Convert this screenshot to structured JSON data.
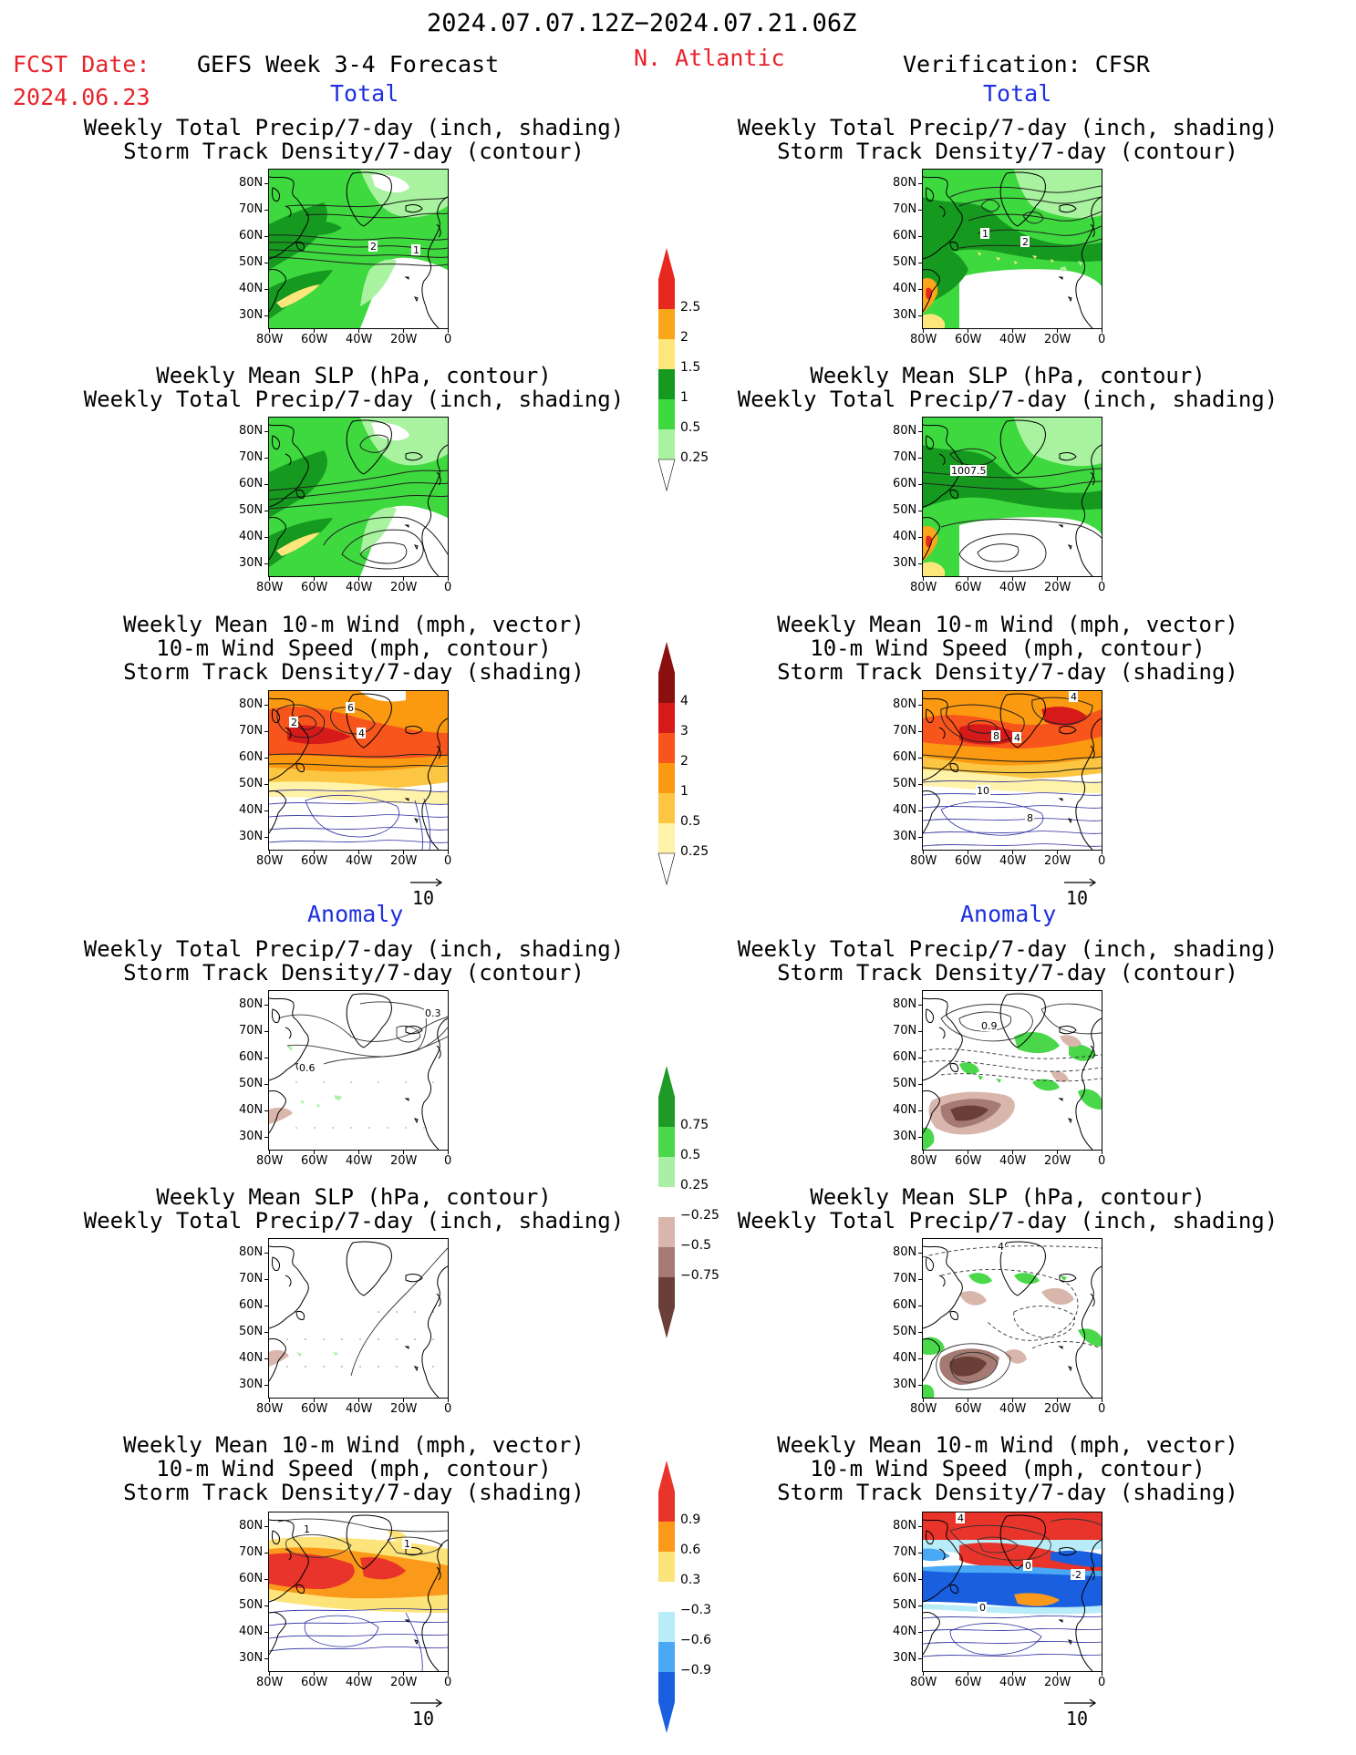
{
  "header": {
    "date_range": "2024.07.07.12Z−2024.07.21.06Z",
    "fcst_label": "FCST Date:",
    "fcst_date": "2024.06.23",
    "forecast_title": "GEFS Week 3-4 Forecast",
    "region": "N. Atlantic",
    "verification": "Verification: CFSR"
  },
  "sections": {
    "total": "Total",
    "anomaly": "Anomaly"
  },
  "titles": {
    "precip_storm": [
      "Weekly Total Precip/7-day (inch, shading)",
      "Storm Track Density/7-day (contour)"
    ],
    "slp_precip": [
      "Weekly Mean SLP (hPa, contour)",
      "Weekly Total Precip/7-day (inch, shading)"
    ],
    "wind": [
      "Weekly Mean 10-m Wind (mph, vector)",
      "10-m Wind Speed (mph, contour)",
      "Storm Track Density/7-day (shading)"
    ]
  },
  "axes": {
    "lat_ticks": [
      "80N",
      "70N",
      "60N",
      "50N",
      "40N",
      "30N"
    ],
    "lon_ticks": [
      "80W",
      "60W",
      "40W",
      "20W",
      "0"
    ]
  },
  "vector_ref": "10",
  "contour_labels": {
    "fcst_precip_storm": [
      "2",
      "1"
    ],
    "obs_precip_storm": [
      "1",
      "2"
    ],
    "obs_slp": [
      "1007.5"
    ],
    "fcst_wind": [
      "2",
      "6",
      "4"
    ],
    "obs_wind": [
      "8",
      "4",
      "4",
      "10",
      "8"
    ],
    "fcst_anom_precip_storm": [
      "0.3",
      "0.6"
    ],
    "obs_anom_precip_storm": [
      "0.9"
    ],
    "obs_anom_slp": [
      "4"
    ],
    "fcst_anom_wind": [
      "1",
      "1"
    ],
    "obs_anom_wind": [
      "4",
      "0",
      "-2",
      "0"
    ]
  },
  "colorbars": {
    "total_precip": {
      "labels": [
        "2.5",
        "2",
        "1.5",
        "1",
        "0.5",
        "0.25"
      ],
      "colors": [
        "#e8281e",
        "#fba51a",
        "#fde67b",
        "#159a1f",
        "#3ed83f",
        "#a8f2a0"
      ]
    },
    "total_storm": {
      "labels": [
        "4",
        "3",
        "2",
        "1",
        "0.5",
        "0.25"
      ],
      "colors": [
        "#8a0f0f",
        "#d61a1a",
        "#f7551c",
        "#fb9a10",
        "#fdc642",
        "#fef3a8"
      ]
    },
    "anom_precip": {
      "labels": [
        "0.75",
        "0.5",
        "0.25",
        "−0.25",
        "−0.5",
        "−0.75"
      ],
      "colors": [
        "#1f9a26",
        "#4ad84a",
        "#a9efa6",
        "#ffffff",
        "#d9b6ac",
        "#a47a72",
        "#6a3f37"
      ]
    },
    "anom_storm": {
      "labels": [
        "0.9",
        "0.6",
        "0.3",
        "−0.3",
        "−0.6",
        "−0.9"
      ],
      "colors": [
        "#e8342a",
        "#fb9a1a",
        "#fde47a",
        "#ffffff",
        "#b8ecf8",
        "#4aa9f4",
        "#1a5fe0"
      ]
    }
  }
}
